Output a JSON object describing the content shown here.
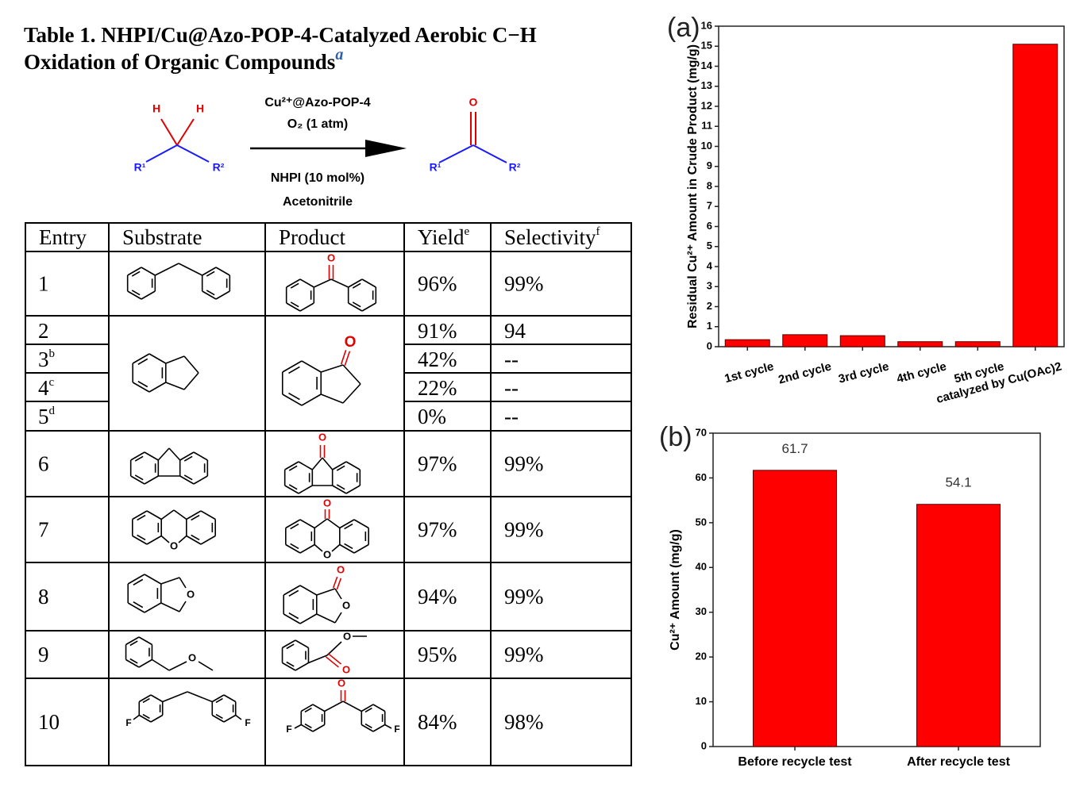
{
  "title_lines": [
    "Table 1. NHPI/Cu@Azo-POP-4-Catalyzed Aerobic C−H",
    "Oxidation of Organic Compounds"
  ],
  "title_note": "a",
  "scheme": {
    "substrate_atoms": [
      "H",
      "H",
      "R¹",
      "R²"
    ],
    "reagents_above": [
      "Cu²⁺@Azo-POP-4",
      "O₂ (1 atm)"
    ],
    "reagents_below": [
      "NHPI (10 mol%)",
      "Acetonitrile"
    ],
    "product_atoms": [
      "O",
      "R¹",
      "R²"
    ]
  },
  "table": {
    "header": [
      {
        "text": "Entry"
      },
      {
        "text": "Substrate"
      },
      {
        "text": "Product"
      },
      {
        "text": "Yield",
        "note": "e"
      },
      {
        "text": "Selectivity",
        "note": "f"
      }
    ],
    "rows": [
      {
        "entry": "1",
        "yield": "96%",
        "selectivity": "99%"
      },
      {
        "entry": "2",
        "yield": "91%",
        "selectivity": "94"
      },
      {
        "entry": "3",
        "note": "b",
        "yield": "42%",
        "selectivity": "--"
      },
      {
        "entry": "4",
        "note": "c",
        "yield": "22%",
        "selectivity": "--"
      },
      {
        "entry": "5",
        "note": "d",
        "yield": "0%",
        "selectivity": "--"
      },
      {
        "entry": "6",
        "yield": "97%",
        "selectivity": "99%"
      },
      {
        "entry": "7",
        "yield": "97%",
        "selectivity": "99%"
      },
      {
        "entry": "8",
        "yield": "94%",
        "selectivity": "99%"
      },
      {
        "entry": "9",
        "yield": "95%",
        "selectivity": "99%"
      },
      {
        "entry": "10",
        "yield": "84%",
        "selectivity": "98%"
      }
    ],
    "structures": [
      {
        "product_atoms": [
          "O"
        ]
      },
      {
        "product_atoms": [
          "O"
        ]
      },
      {
        "product_atoms": [
          "O"
        ]
      },
      {
        "substrate_atoms": [
          "O"
        ],
        "product_atoms": [
          "O",
          "O"
        ]
      },
      {
        "substrate_atoms": [
          "O"
        ],
        "product_atoms": [
          "O",
          "O"
        ]
      },
      {
        "substrate_atoms": [
          "O"
        ],
        "product_atoms": [
          "O",
          "O"
        ]
      },
      {
        "substrate_atoms": [
          "F",
          "F"
        ],
        "product_atoms": [
          "O",
          "F",
          "F"
        ]
      }
    ]
  },
  "chart_data": [
    {
      "type": "bar",
      "panel_label": "(a)",
      "ylabel": "Residual Cu²⁺ Amount in Crude Product (mg/g)",
      "categories": [
        "1st cycle",
        "2nd cycle",
        "3rd cycle",
        "4th cycle",
        "5th cycle",
        "catalyzed by Cu(OAc)2"
      ],
      "values": [
        0.35,
        0.6,
        0.55,
        0.25,
        0.25,
        15.1
      ],
      "color": "#ff0000",
      "ylim": [
        0,
        16
      ],
      "yticks": [
        0,
        1,
        2,
        3,
        4,
        5,
        6,
        7,
        8,
        9,
        10,
        11,
        12,
        13,
        14,
        15,
        16
      ]
    },
    {
      "type": "bar",
      "panel_label": "(b)",
      "ylabel": "Cu²⁺ Amount (mg/g)",
      "categories": [
        "Before recycle test",
        "After recycle test"
      ],
      "values": [
        61.7,
        54.1
      ],
      "color": "#ff0000",
      "show_values": true,
      "ylim": [
        0,
        70
      ],
      "yticks": [
        0,
        10,
        20,
        30,
        40,
        50,
        60,
        70
      ]
    }
  ]
}
